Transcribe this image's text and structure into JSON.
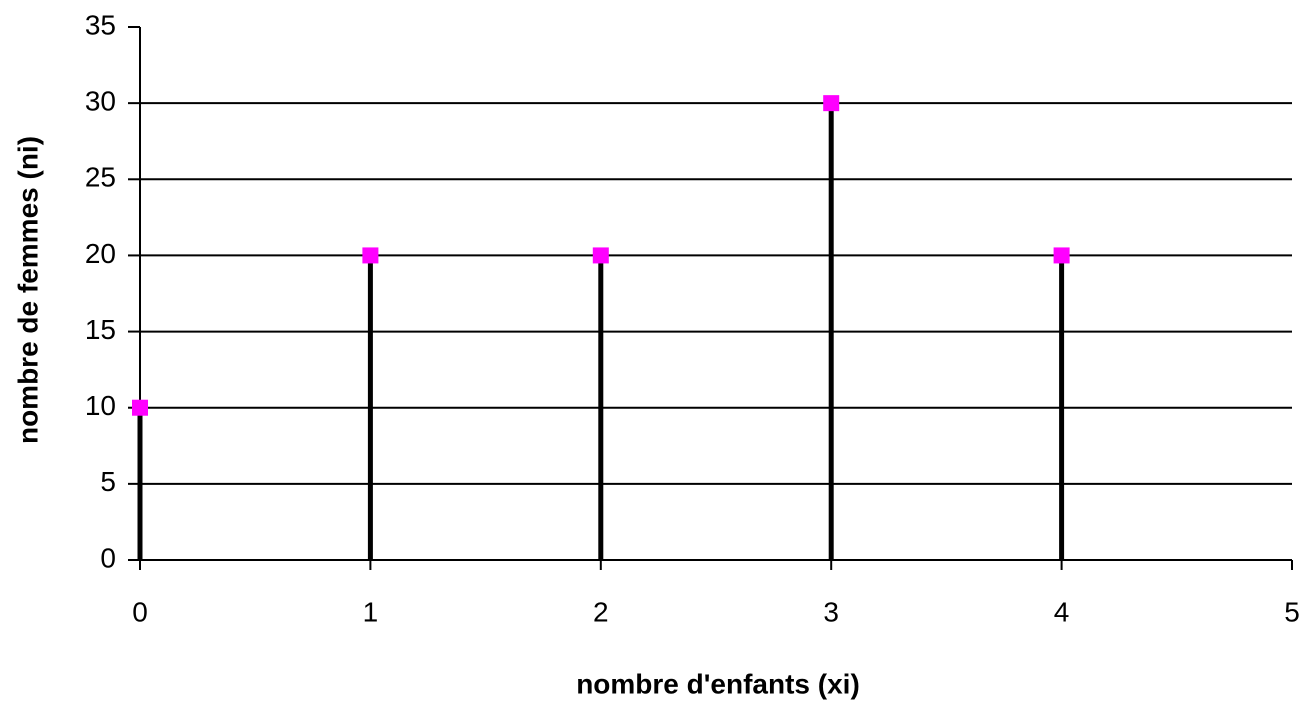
{
  "chart_data": {
    "type": "stem",
    "x_label": "nombre d'enfants (xi)",
    "y_label": "nombre de femmes (ni)",
    "x": [
      0,
      1,
      2,
      3,
      4
    ],
    "series": [
      {
        "name": "ni",
        "color": "#ff00ff",
        "values": [
          10,
          20,
          20,
          30,
          20
        ]
      }
    ],
    "stem_color": "#000000",
    "xlim": [
      0,
      5
    ],
    "xticks": [
      0,
      1,
      2,
      3,
      4,
      5
    ],
    "ylim": [
      0,
      35
    ],
    "yticks": [
      0,
      5,
      10,
      15,
      20,
      25,
      30,
      35
    ],
    "grid": true
  }
}
